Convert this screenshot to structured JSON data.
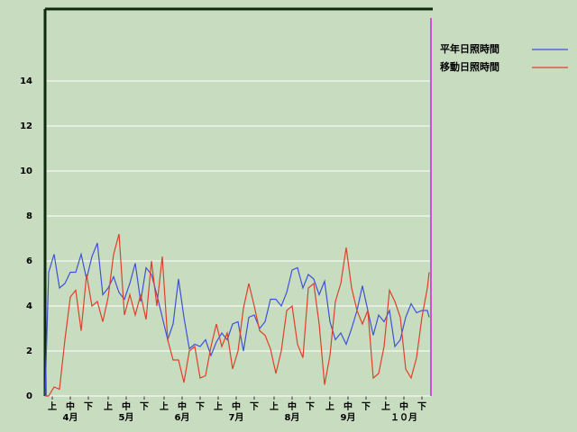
{
  "chart_data": {
    "type": "line",
    "x": [
      0,
      2,
      5,
      8,
      11,
      14,
      17,
      20,
      23,
      26,
      29,
      32,
      35,
      38,
      41,
      44,
      47,
      50,
      53,
      56,
      59,
      62,
      65,
      68,
      71,
      74,
      77,
      80,
      83,
      86,
      89,
      92,
      95,
      98,
      101,
      104,
      107,
      110,
      113,
      116,
      119,
      122,
      125,
      128,
      131,
      134,
      137,
      140,
      143,
      146,
      149,
      152,
      155,
      158,
      161,
      164,
      167,
      170,
      173,
      176,
      179,
      182,
      185,
      188,
      191,
      194,
      197,
      200,
      203,
      206,
      209,
      212,
      213
    ],
    "series": [
      {
        "name": "平年日照時間",
        "color": "#3f51d8",
        "values": [
          0,
          5.5,
          6.3,
          4.8,
          5.0,
          5.5,
          5.5,
          6.3,
          5.2,
          6.2,
          6.8,
          4.5,
          4.8,
          5.3,
          4.6,
          4.3,
          5.0,
          5.9,
          4.2,
          5.7,
          5.4,
          4.5,
          3.5,
          2.5,
          3.2,
          5.2,
          3.5,
          2.1,
          2.3,
          2.2,
          2.5,
          1.8,
          2.4,
          2.8,
          2.5,
          3.2,
          3.3,
          2.0,
          3.5,
          3.6,
          3.0,
          3.3,
          4.3,
          4.3,
          4.0,
          4.6,
          5.6,
          5.7,
          4.8,
          5.4,
          5.2,
          4.5,
          5.1,
          3.3,
          2.5,
          2.8,
          2.3,
          3.0,
          3.8,
          4.9,
          3.8,
          2.7,
          3.6,
          3.3,
          3.8,
          2.2,
          2.5,
          3.5,
          4.1,
          3.7,
          3.8,
          3.8,
          3.5
        ]
      },
      {
        "name": "移動日照時間",
        "color": "#e0402a",
        "values": [
          0,
          0,
          0.4,
          0.3,
          2.5,
          4.4,
          4.7,
          2.9,
          5.4,
          4.0,
          4.2,
          3.3,
          4.4,
          6.3,
          7.2,
          3.6,
          4.5,
          3.6,
          4.5,
          3.4,
          6.0,
          4.0,
          6.2,
          2.5,
          1.6,
          1.6,
          0.6,
          2.0,
          2.2,
          0.8,
          0.9,
          2.2,
          3.2,
          2.2,
          2.8,
          1.2,
          2.0,
          3.9,
          5.0,
          4.0,
          2.9,
          2.7,
          2.1,
          1.0,
          2.0,
          3.8,
          4.0,
          2.3,
          1.7,
          4.8,
          5.0,
          3.2,
          0.5,
          1.8,
          4.2,
          5.0,
          6.6,
          4.8,
          3.8,
          3.2,
          3.8,
          0.8,
          1.0,
          2.2,
          4.7,
          4.2,
          3.5,
          1.2,
          0.8,
          1.7,
          3.5,
          4.8,
          5.5
        ]
      }
    ],
    "xlim": [
      0,
      214
    ],
    "xticks": [
      {
        "value": 4,
        "label": "上"
      },
      {
        "value": 14,
        "label": "中"
      },
      {
        "value": 24,
        "label": "下"
      },
      {
        "value": 35,
        "label": "上"
      },
      {
        "value": 45,
        "label": "中"
      },
      {
        "value": 55,
        "label": "下"
      },
      {
        "value": 66,
        "label": "上"
      },
      {
        "value": 76,
        "label": "中"
      },
      {
        "value": 86,
        "label": "下"
      },
      {
        "value": 96,
        "label": "上"
      },
      {
        "value": 106,
        "label": "中"
      },
      {
        "value": 116,
        "label": "下"
      },
      {
        "value": 127,
        "label": "上"
      },
      {
        "value": 137,
        "label": "中"
      },
      {
        "value": 147,
        "label": "下"
      },
      {
        "value": 158,
        "label": "上"
      },
      {
        "value": 168,
        "label": "中"
      },
      {
        "value": 178,
        "label": "下"
      },
      {
        "value": 189,
        "label": "上"
      },
      {
        "value": 199,
        "label": "中"
      },
      {
        "value": 209,
        "label": "下"
      }
    ],
    "month_ticks": [
      {
        "value": 14,
        "label": "4月"
      },
      {
        "value": 45,
        "label": "5月"
      },
      {
        "value": 76,
        "label": "6月"
      },
      {
        "value": 106,
        "label": "7月"
      },
      {
        "value": 137,
        "label": "8月"
      },
      {
        "value": 168,
        "label": "9月"
      },
      {
        "value": 199,
        "label": "１０月"
      }
    ],
    "ylim": [
      0,
      17.2
    ],
    "yticks": [
      0,
      2,
      4,
      6,
      8,
      10,
      12,
      14
    ],
    "grid": true
  }
}
